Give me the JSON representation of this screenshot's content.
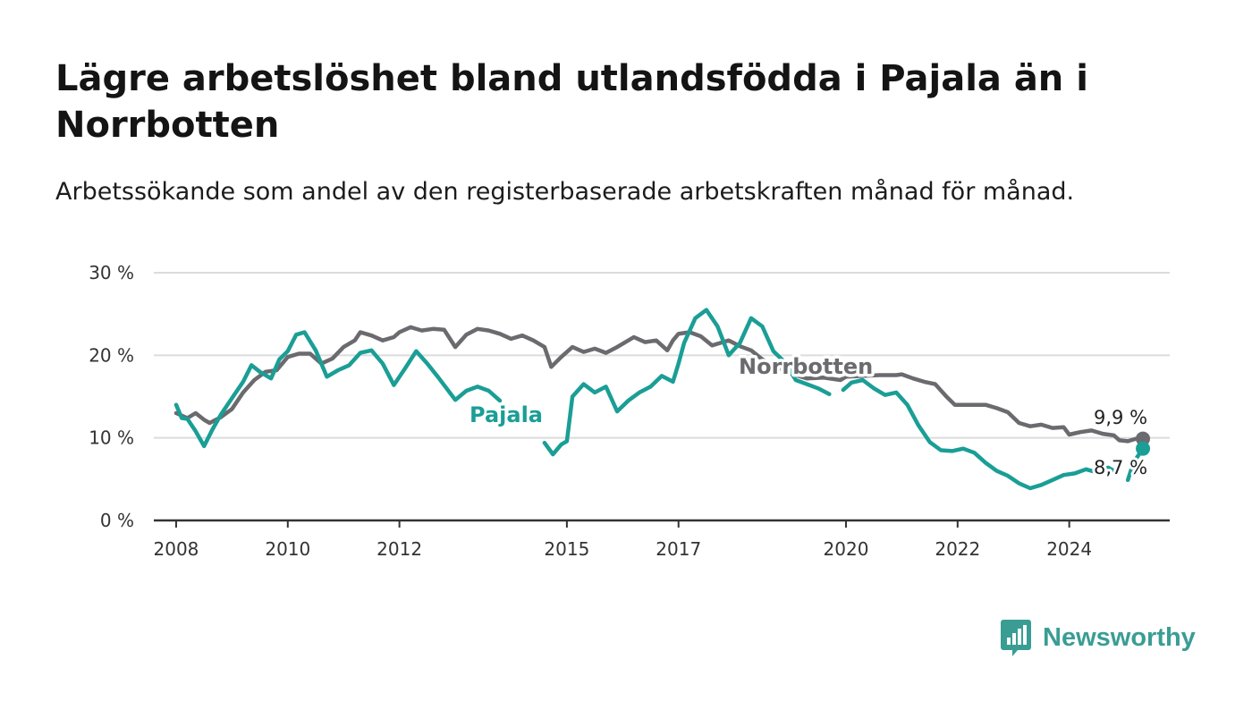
{
  "title": "Lägre arbetslöshet bland utlandsfödda i Pajala än i Norrbotten",
  "subtitle": "Arbetssökande som andel av den registerbaserade arbetskraften månad för månad.",
  "brand": {
    "name": "Newsworthy",
    "icon": "newsworthy-logo-icon"
  },
  "colors": {
    "pajala": "#1a9e96",
    "norrbotten": "#6b6a6e",
    "grid": "#dcdcdc",
    "axis": "#333333"
  },
  "chart_data": {
    "type": "line",
    "title": "Lägre arbetslöshet bland utlandsfödda i Pajala än i Norrbotten",
    "subtitle": "Arbetssökande som andel av den registerbaserade arbetskraften månad för månad.",
    "xlabel": "",
    "ylabel": "",
    "ylim": [
      0,
      30
    ],
    "xlim": [
      2007.6,
      2025.8
    ],
    "grid": true,
    "y_ticks": [
      {
        "value": 0,
        "label": "0 %"
      },
      {
        "value": 10,
        "label": "10 %"
      },
      {
        "value": 20,
        "label": "20 %"
      },
      {
        "value": 30,
        "label": "30 %"
      }
    ],
    "x_ticks": [
      {
        "value": 2008,
        "label": "2008"
      },
      {
        "value": 2010,
        "label": "2010"
      },
      {
        "value": 2012,
        "label": "2012"
      },
      {
        "value": 2015,
        "label": "2015"
      },
      {
        "value": 2017,
        "label": "2017"
      },
      {
        "value": 2020,
        "label": "2020"
      },
      {
        "value": 2022,
        "label": "2022"
      },
      {
        "value": 2024,
        "label": "2024"
      }
    ],
    "end_labels": {
      "norrbotten": "9,9 %",
      "pajala": "8,7 %"
    },
    "series": [
      {
        "name": "Norrbotten",
        "key": "norrbotten",
        "points": [
          [
            2008.0,
            13.0
          ],
          [
            2008.2,
            12.4
          ],
          [
            2008.35,
            13.0
          ],
          [
            2008.5,
            12.2
          ],
          [
            2008.6,
            11.8
          ],
          [
            2008.8,
            12.5
          ],
          [
            2009.0,
            13.5
          ],
          [
            2009.2,
            15.5
          ],
          [
            2009.4,
            17.0
          ],
          [
            2009.6,
            18.0
          ],
          [
            2009.8,
            18.2
          ],
          [
            2010.0,
            19.8
          ],
          [
            2010.2,
            20.2
          ],
          [
            2010.4,
            20.2
          ],
          [
            2010.6,
            19.0
          ],
          [
            2010.8,
            19.6
          ],
          [
            2011.0,
            21.0
          ],
          [
            2011.2,
            21.8
          ],
          [
            2011.3,
            22.8
          ],
          [
            2011.5,
            22.4
          ],
          [
            2011.7,
            21.8
          ],
          [
            2011.9,
            22.2
          ],
          [
            2012.0,
            22.8
          ],
          [
            2012.2,
            23.4
          ],
          [
            2012.4,
            23.0
          ],
          [
            2012.6,
            23.2
          ],
          [
            2012.8,
            23.1
          ],
          [
            2013.0,
            21.0
          ],
          [
            2013.2,
            22.5
          ],
          [
            2013.4,
            23.2
          ],
          [
            2013.6,
            23.0
          ],
          [
            2013.8,
            22.6
          ],
          [
            2014.0,
            22.0
          ],
          [
            2014.2,
            22.4
          ],
          [
            2014.4,
            21.8
          ],
          [
            2014.6,
            21.0
          ],
          [
            2014.72,
            18.6
          ],
          [
            2014.9,
            19.8
          ],
          [
            2015.1,
            21.0
          ],
          [
            2015.3,
            20.4
          ],
          [
            2015.5,
            20.8
          ],
          [
            2015.7,
            20.3
          ],
          [
            2015.9,
            21.0
          ],
          [
            2016.0,
            21.4
          ],
          [
            2016.2,
            22.2
          ],
          [
            2016.4,
            21.6
          ],
          [
            2016.6,
            21.8
          ],
          [
            2016.8,
            20.6
          ],
          [
            2016.9,
            21.8
          ],
          [
            2017.0,
            22.6
          ],
          [
            2017.2,
            22.8
          ],
          [
            2017.4,
            22.3
          ],
          [
            2017.6,
            21.2
          ],
          [
            2017.75,
            21.5
          ],
          [
            2017.9,
            21.8
          ],
          [
            2018.1,
            21.1
          ],
          [
            2018.3,
            20.6
          ],
          [
            2018.5,
            19.5
          ],
          [
            2018.8,
            18.5
          ],
          [
            2019.0,
            17.8
          ],
          [
            2019.3,
            17.2
          ],
          [
            2019.6,
            17.3
          ],
          [
            2019.9,
            17.0
          ],
          [
            2020.0,
            17.4
          ],
          [
            2020.3,
            17.5
          ],
          [
            2020.6,
            17.6
          ],
          [
            2020.9,
            17.6
          ],
          [
            2021.0,
            17.7
          ],
          [
            2021.2,
            17.2
          ],
          [
            2021.4,
            16.8
          ],
          [
            2021.6,
            16.5
          ],
          [
            2021.8,
            15.0
          ],
          [
            2021.95,
            14.0
          ],
          [
            2022.2,
            14.0
          ],
          [
            2022.5,
            14.0
          ],
          [
            2022.7,
            13.6
          ],
          [
            2022.9,
            13.1
          ],
          [
            2023.1,
            11.8
          ],
          [
            2023.3,
            11.4
          ],
          [
            2023.5,
            11.6
          ],
          [
            2023.7,
            11.2
          ],
          [
            2023.9,
            11.3
          ],
          [
            2024.0,
            10.4
          ],
          [
            2024.2,
            10.7
          ],
          [
            2024.4,
            10.9
          ],
          [
            2024.6,
            10.5
          ],
          [
            2024.8,
            10.3
          ],
          [
            2024.9,
            9.7
          ],
          [
            2025.05,
            9.6
          ],
          [
            2025.2,
            9.9
          ],
          [
            2025.32,
            9.9
          ]
        ]
      },
      {
        "name": "Pajala",
        "key": "pajala",
        "segments": [
          [
            [
              2008.0,
              14.0
            ],
            [
              2008.1,
              12.4
            ],
            [
              2008.2,
              12.3
            ],
            [
              2008.35,
              10.8
            ],
            [
              2008.5,
              9.0
            ],
            [
              2008.65,
              11.0
            ],
            [
              2008.8,
              12.8
            ],
            [
              2009.0,
              14.8
            ],
            [
              2009.2,
              16.8
            ],
            [
              2009.35,
              18.8
            ],
            [
              2009.5,
              18.0
            ],
            [
              2009.7,
              17.2
            ],
            [
              2009.85,
              19.5
            ],
            [
              2010.0,
              20.5
            ],
            [
              2010.15,
              22.5
            ],
            [
              2010.3,
              22.8
            ],
            [
              2010.5,
              20.6
            ],
            [
              2010.7,
              17.4
            ],
            [
              2010.9,
              18.2
            ],
            [
              2011.1,
              18.8
            ],
            [
              2011.3,
              20.3
            ],
            [
              2011.5,
              20.6
            ],
            [
              2011.7,
              19.0
            ],
            [
              2011.9,
              16.4
            ],
            [
              2012.1,
              18.4
            ],
            [
              2012.3,
              20.5
            ],
            [
              2012.5,
              19.0
            ],
            [
              2012.7,
              17.3
            ],
            [
              2012.9,
              15.5
            ],
            [
              2013.0,
              14.6
            ],
            [
              2013.2,
              15.7
            ],
            [
              2013.4,
              16.2
            ],
            [
              2013.6,
              15.7
            ],
            [
              2013.8,
              14.5
            ]
          ],
          [
            [
              2014.6,
              9.4
            ],
            [
              2014.75,
              8.0
            ],
            [
              2014.9,
              9.2
            ],
            [
              2015.0,
              9.6
            ],
            [
              2015.1,
              15.0
            ],
            [
              2015.3,
              16.5
            ],
            [
              2015.5,
              15.5
            ],
            [
              2015.7,
              16.2
            ],
            [
              2015.9,
              13.2
            ],
            [
              2016.1,
              14.5
            ],
            [
              2016.3,
              15.5
            ],
            [
              2016.5,
              16.2
            ],
            [
              2016.7,
              17.5
            ],
            [
              2016.9,
              16.8
            ],
            [
              2017.0,
              19.0
            ],
            [
              2017.1,
              21.5
            ],
            [
              2017.3,
              24.5
            ],
            [
              2017.5,
              25.5
            ],
            [
              2017.7,
              23.5
            ],
            [
              2017.9,
              20.0
            ],
            [
              2018.1,
              21.5
            ],
            [
              2018.3,
              24.5
            ],
            [
              2018.5,
              23.5
            ],
            [
              2018.7,
              20.5
            ],
            [
              2018.9,
              19.2
            ],
            [
              2019.1,
              17.0
            ],
            [
              2019.3,
              16.5
            ],
            [
              2019.5,
              16.0
            ],
            [
              2019.7,
              15.3
            ]
          ],
          [
            [
              2019.95,
              15.8
            ],
            [
              2020.1,
              16.7
            ],
            [
              2020.3,
              17.0
            ],
            [
              2020.5,
              16.0
            ],
            [
              2020.7,
              15.2
            ],
            [
              2020.9,
              15.5
            ],
            [
              2021.1,
              14.0
            ],
            [
              2021.3,
              11.5
            ],
            [
              2021.5,
              9.5
            ],
            [
              2021.7,
              8.5
            ],
            [
              2021.9,
              8.4
            ],
            [
              2022.1,
              8.7
            ],
            [
              2022.3,
              8.2
            ],
            [
              2022.5,
              7.0
            ],
            [
              2022.7,
              6.0
            ],
            [
              2022.9,
              5.4
            ],
            [
              2023.1,
              4.5
            ],
            [
              2023.3,
              3.9
            ],
            [
              2023.5,
              4.3
            ],
            [
              2023.7,
              4.9
            ],
            [
              2023.9,
              5.5
            ],
            [
              2024.1,
              5.7
            ],
            [
              2024.3,
              6.2
            ],
            [
              2024.5,
              5.8
            ],
            [
              2024.7,
              6.4
            ],
            [
              2024.8,
              6.0
            ]
          ],
          [
            [
              2025.05,
              4.9
            ],
            [
              2025.15,
              7.0
            ],
            [
              2025.32,
              8.7
            ]
          ]
        ]
      }
    ]
  }
}
